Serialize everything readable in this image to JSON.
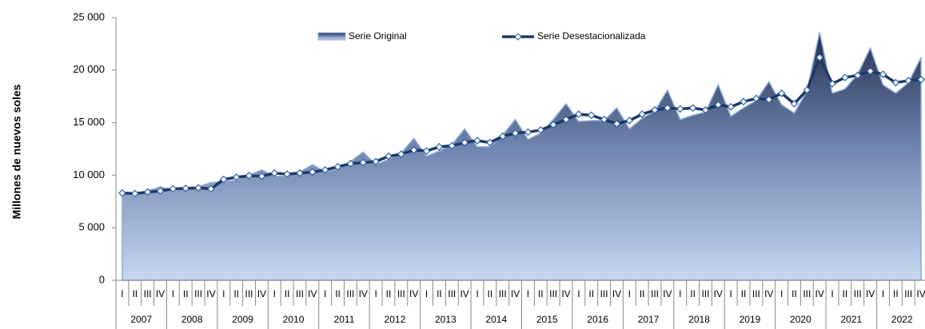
{
  "chart_data": {
    "type": "area-line",
    "y_label": "Millones de nuevos soles",
    "years": [
      "2007",
      "2008",
      "2009",
      "2010",
      "2011",
      "2012",
      "2013",
      "2014",
      "2015",
      "2016",
      "2017",
      "2018",
      "2019",
      "2020",
      "2021",
      "2022"
    ],
    "categories": [
      "I",
      "II",
      "III",
      "IV",
      "I",
      "II",
      "III",
      "IV",
      "I",
      "II",
      "III",
      "IV",
      "I",
      "II",
      "III",
      "IV",
      "I",
      "II",
      "III",
      "IV",
      "I",
      "II",
      "III",
      "IV",
      "I",
      "II",
      "III",
      "IV",
      "I",
      "II",
      "III",
      "IV",
      "I",
      "II",
      "III",
      "IV",
      "I",
      "II",
      "III",
      "IV",
      "I",
      "II",
      "III",
      "IV",
      "I",
      "II",
      "III",
      "IV",
      "I",
      "II",
      "III",
      "IV",
      "I",
      "II",
      "III",
      "IV",
      "I",
      "II",
      "III",
      "IV",
      "I",
      "II",
      "III",
      "IV"
    ],
    "series": [
      {
        "name": "Serie Original",
        "color": "#8eaadb",
        "values": [
          8200,
          8100,
          8500,
          8900,
          8600,
          8700,
          8900,
          9300,
          9400,
          9500,
          10000,
          10500,
          9900,
          9900,
          10300,
          11000,
          10300,
          10600,
          11300,
          12200,
          11000,
          11500,
          12100,
          13500,
          11800,
          12300,
          12900,
          14400,
          12700,
          12700,
          13800,
          15300,
          13400,
          14000,
          15300,
          16800,
          15100,
          15200,
          15200,
          16400,
          14400,
          15400,
          16100,
          18100,
          15300,
          15700,
          16000,
          18600,
          15600,
          16400,
          17100,
          18900,
          16700,
          15900,
          18000,
          23600,
          17800,
          18200,
          19600,
          22100,
          18600,
          17800,
          18800,
          21200
        ]
      },
      {
        "name": "Serie Desestacionalizada",
        "color": "#1f3864",
        "values": [
          8300,
          8250,
          8400,
          8500,
          8700,
          8750,
          8800,
          8700,
          9600,
          9800,
          9950,
          9900,
          10200,
          10100,
          10200,
          10300,
          10500,
          10800,
          11100,
          11200,
          11300,
          11800,
          12000,
          12400,
          12300,
          12700,
          12800,
          13100,
          13300,
          13100,
          13700,
          14000,
          14100,
          14300,
          14800,
          15300,
          15800,
          15700,
          15300,
          14900,
          15200,
          15800,
          16200,
          16400,
          16300,
          16400,
          16200,
          16700,
          16500,
          17000,
          17300,
          17200,
          17800,
          16800,
          18100,
          21200,
          18700,
          19300,
          19500,
          19900,
          19600,
          18800,
          19000,
          19100
        ]
      }
    ],
    "ylim": [
      0,
      25000
    ],
    "yticks": [
      0,
      {
        "value": 5000,
        "label": "5 000"
      },
      {
        "value": 10000,
        "label": "10 000"
      },
      {
        "value": 15000,
        "label": "15 000"
      },
      {
        "value": 20000,
        "label": "20 000"
      },
      {
        "value": 25000,
        "label": "25 000"
      }
    ]
  }
}
